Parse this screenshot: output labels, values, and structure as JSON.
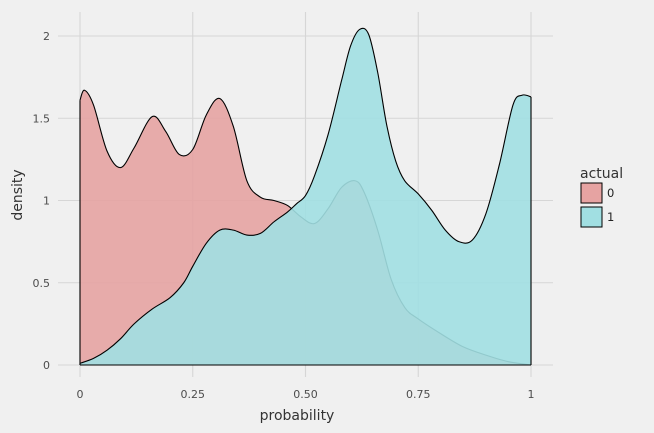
{
  "chart_data": {
    "type": "area",
    "title": "",
    "xlabel": "probability",
    "ylabel": "density",
    "xlim": [
      0,
      1
    ],
    "ylim": [
      0,
      2.1
    ],
    "x_ticks": [
      0,
      0.25,
      0.5,
      0.75,
      1
    ],
    "x_tick_labels": [
      "0",
      "0.25",
      "0.50",
      "0.75",
      "1"
    ],
    "y_ticks": [
      0,
      0.5,
      1,
      1.5,
      2
    ],
    "y_tick_labels": [
      "0",
      "0.5",
      "1",
      "1.5",
      "2"
    ],
    "grid": true,
    "legend": {
      "title": "actual",
      "position": "right"
    },
    "series": [
      {
        "name": "0",
        "color": "#e6a3a2",
        "x": [
          0,
          0.01,
          0.03,
          0.06,
          0.09,
          0.12,
          0.16,
          0.19,
          0.22,
          0.25,
          0.28,
          0.31,
          0.34,
          0.37,
          0.4,
          0.43,
          0.46,
          0.49,
          0.52,
          0.55,
          0.58,
          0.61,
          0.63,
          0.66,
          0.69,
          0.72,
          0.75,
          0.8,
          0.85,
          0.9,
          0.95,
          1
        ],
        "y": [
          1.61,
          1.67,
          1.58,
          1.3,
          1.2,
          1.32,
          1.51,
          1.42,
          1.28,
          1.31,
          1.52,
          1.62,
          1.45,
          1.12,
          1.02,
          1.0,
          0.97,
          0.9,
          0.86,
          0.95,
          1.08,
          1.12,
          1.05,
          0.82,
          0.52,
          0.35,
          0.28,
          0.19,
          0.11,
          0.06,
          0.02,
          0.0
        ]
      },
      {
        "name": "1",
        "color": "#a1dfe2",
        "x": [
          0,
          0.03,
          0.06,
          0.09,
          0.12,
          0.16,
          0.2,
          0.23,
          0.25,
          0.28,
          0.31,
          0.34,
          0.37,
          0.4,
          0.43,
          0.46,
          0.48,
          0.5,
          0.52,
          0.55,
          0.58,
          0.6,
          0.62,
          0.64,
          0.66,
          0.68,
          0.7,
          0.72,
          0.75,
          0.78,
          0.81,
          0.84,
          0.87,
          0.9,
          0.93,
          0.96,
          0.98,
          1
        ],
        "y": [
          0.01,
          0.04,
          0.09,
          0.16,
          0.25,
          0.34,
          0.41,
          0.5,
          0.6,
          0.74,
          0.82,
          0.82,
          0.79,
          0.8,
          0.87,
          0.93,
          0.98,
          1.03,
          1.15,
          1.4,
          1.73,
          1.94,
          2.04,
          2.01,
          1.78,
          1.46,
          1.24,
          1.12,
          1.04,
          0.94,
          0.82,
          0.75,
          0.76,
          0.92,
          1.22,
          1.58,
          1.64,
          1.63
        ]
      }
    ]
  }
}
